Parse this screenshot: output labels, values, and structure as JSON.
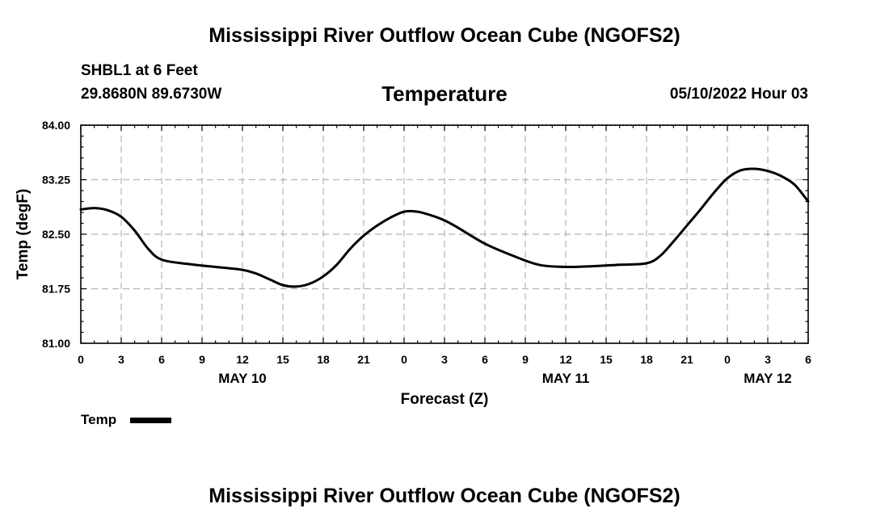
{
  "page": {
    "title": "Mississippi River Outflow Ocean Cube (NGOFS2)",
    "footer_title": "Mississippi River Outflow Ocean Cube (NGOFS2)",
    "station": "SHBL1 at 6 Feet",
    "coords": "29.8680N  89.6730W",
    "datetime": "05/10/2022 Hour 03"
  },
  "chart_data": {
    "type": "line",
    "title": "Temperature",
    "xlabel": "Forecast (Z)",
    "ylabel": "Temp (degF)",
    "xlim": [
      0,
      54
    ],
    "ylim": [
      81.0,
      84.0
    ],
    "grid": true,
    "x_tick_labels": [
      "0",
      "3",
      "6",
      "9",
      "12",
      "15",
      "18",
      "21",
      "0",
      "3",
      "6",
      "9",
      "12",
      "15",
      "18",
      "21",
      "0",
      "3",
      "6"
    ],
    "y_tick_labels": [
      "84.00",
      "83.25",
      "82.50",
      "81.75",
      "81.00"
    ],
    "y_tick_values": [
      84.0,
      83.25,
      82.5,
      81.75,
      81.0
    ],
    "date_labels": [
      {
        "label": "MAY 10",
        "hour": 12
      },
      {
        "label": "MAY 11",
        "hour": 36
      },
      {
        "label": "MAY 12",
        "hour": 51
      }
    ],
    "legend_position": "bottom-left",
    "series": [
      {
        "name": "Temp",
        "color": "#000000",
        "x": [
          0,
          1,
          2,
          3,
          4,
          5,
          6,
          8,
          10,
          12,
          13,
          14,
          15,
          16,
          17,
          18,
          19,
          20,
          21,
          22,
          23,
          24,
          25,
          26,
          27,
          28,
          30,
          32,
          34,
          36,
          38,
          40,
          42,
          43,
          44,
          45,
          46,
          47,
          48,
          49,
          50,
          51,
          52,
          53,
          54
        ],
        "values": [
          82.84,
          82.86,
          82.83,
          82.74,
          82.55,
          82.3,
          82.15,
          82.09,
          82.05,
          82.01,
          81.96,
          81.88,
          81.8,
          81.78,
          81.82,
          81.92,
          82.08,
          82.3,
          82.48,
          82.62,
          82.73,
          82.81,
          82.81,
          82.76,
          82.69,
          82.59,
          82.37,
          82.21,
          82.08,
          82.05,
          82.06,
          82.08,
          82.1,
          82.2,
          82.4,
          82.62,
          82.84,
          83.07,
          83.27,
          83.38,
          83.4,
          83.37,
          83.3,
          83.18,
          82.95
        ]
      }
    ]
  }
}
